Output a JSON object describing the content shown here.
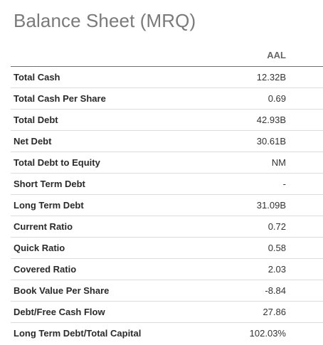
{
  "title": "Balance Sheet (MRQ)",
  "column_header": "AAL",
  "rows": [
    {
      "label": "Total Cash",
      "value": "12.32B"
    },
    {
      "label": "Total Cash Per Share",
      "value": "0.69"
    },
    {
      "label": "Total Debt",
      "value": "42.93B"
    },
    {
      "label": "Net Debt",
      "value": "30.61B"
    },
    {
      "label": "Total Debt to Equity",
      "value": "NM"
    },
    {
      "label": "Short Term Debt",
      "value": "-"
    },
    {
      "label": "Long Term Debt",
      "value": "31.09B"
    },
    {
      "label": "Current Ratio",
      "value": "0.72"
    },
    {
      "label": "Quick Ratio",
      "value": "0.58"
    },
    {
      "label": "Covered Ratio",
      "value": "2.03"
    },
    {
      "label": "Book Value Per Share",
      "value": "-8.84"
    },
    {
      "label": "Debt/Free Cash Flow",
      "value": "27.86"
    },
    {
      "label": "Long Term Debt/Total Capital",
      "value": "102.03%"
    }
  ]
}
